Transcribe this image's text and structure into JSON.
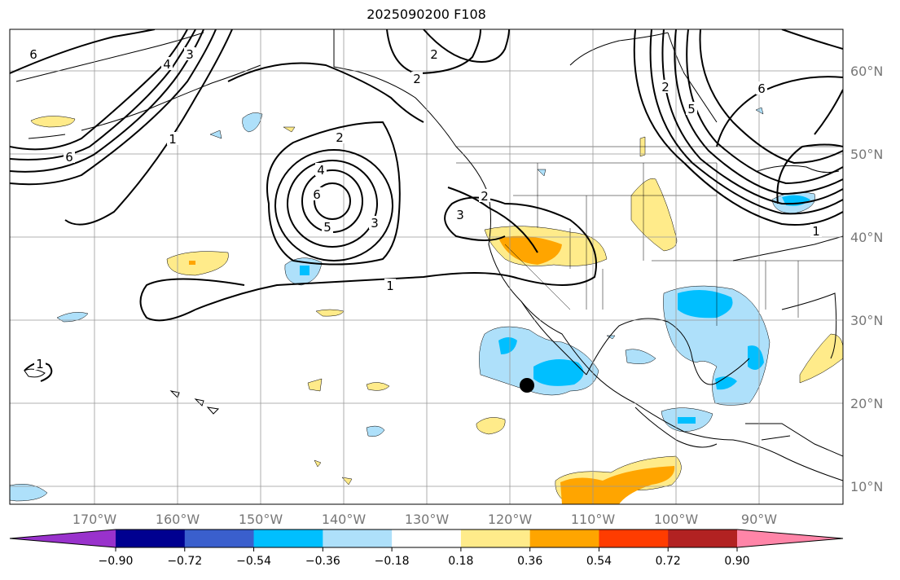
{
  "title": "2025090200 F108",
  "lon_labels": [
    "170°W",
    "160°W",
    "150°W",
    "140°W",
    "130°W",
    "120°W",
    "110°W",
    "100°W",
    "90°W"
  ],
  "lat_labels": [
    "60°N",
    "50°N",
    "40°N",
    "30°N",
    "20°N",
    "10°N"
  ],
  "contour_labels": [
    "6",
    "4",
    "3",
    "2",
    "1",
    "6",
    "2",
    "4",
    "6",
    "5",
    "3",
    "2",
    "1",
    "3",
    "2",
    "1",
    "2",
    "5",
    "6",
    "1"
  ],
  "colorbar": {
    "ticks": [
      "−0.90",
      "−0.72",
      "−0.54",
      "−0.36",
      "−0.18",
      "0.18",
      "0.36",
      "0.54",
      "0.72",
      "0.90"
    ],
    "colors": [
      "#9932cc",
      "#000090",
      "#3a5fcd",
      "#00bfff",
      "#aee0fa",
      "#ffffff",
      "#ffeb8a",
      "#ffa500",
      "#ff3c00",
      "#b22222",
      "#ff85a8"
    ]
  },
  "marker": {
    "label": "storm-center"
  }
}
